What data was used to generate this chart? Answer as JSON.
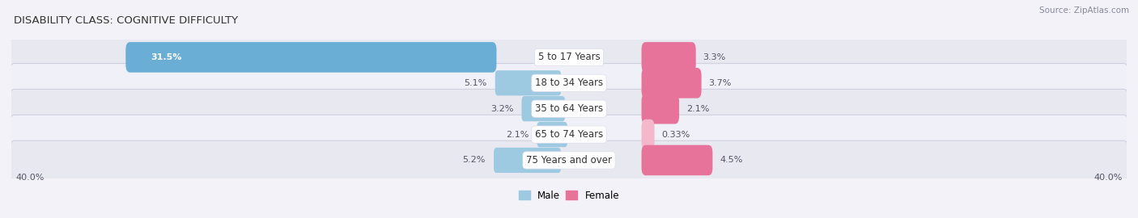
{
  "title": "DISABILITY CLASS: COGNITIVE DIFFICULTY",
  "source_text": "Source: ZipAtlas.com",
  "categories": [
    "5 to 17 Years",
    "18 to 34 Years",
    "35 to 64 Years",
    "65 to 74 Years",
    "75 Years and over"
  ],
  "male_values": [
    31.5,
    5.1,
    3.2,
    2.1,
    5.2
  ],
  "female_values": [
    3.3,
    3.7,
    2.1,
    0.33,
    4.5
  ],
  "male_labels": [
    "31.5%",
    "5.1%",
    "3.2%",
    "2.1%",
    "5.2%"
  ],
  "female_labels": [
    "3.3%",
    "3.7%",
    "2.1%",
    "0.33%",
    "4.5%"
  ],
  "male_colors": [
    "#6aaed6",
    "#9ecae1",
    "#9ecae1",
    "#9ecae1",
    "#9ecae1"
  ],
  "female_colors": [
    "#e8739a",
    "#e8739a",
    "#e8739a",
    "#f4b8cb",
    "#e8739a"
  ],
  "axis_limit": 40.0,
  "axis_label_left": "40.0%",
  "axis_label_right": "40.0%",
  "background_color": "#f2f2f8",
  "row_colors": [
    "#e8e8f0",
    "#f0f0f8"
  ],
  "title_fontsize": 9.5,
  "label_fontsize": 8,
  "category_fontsize": 8.5,
  "legend_male": "Male",
  "legend_female": "Female"
}
